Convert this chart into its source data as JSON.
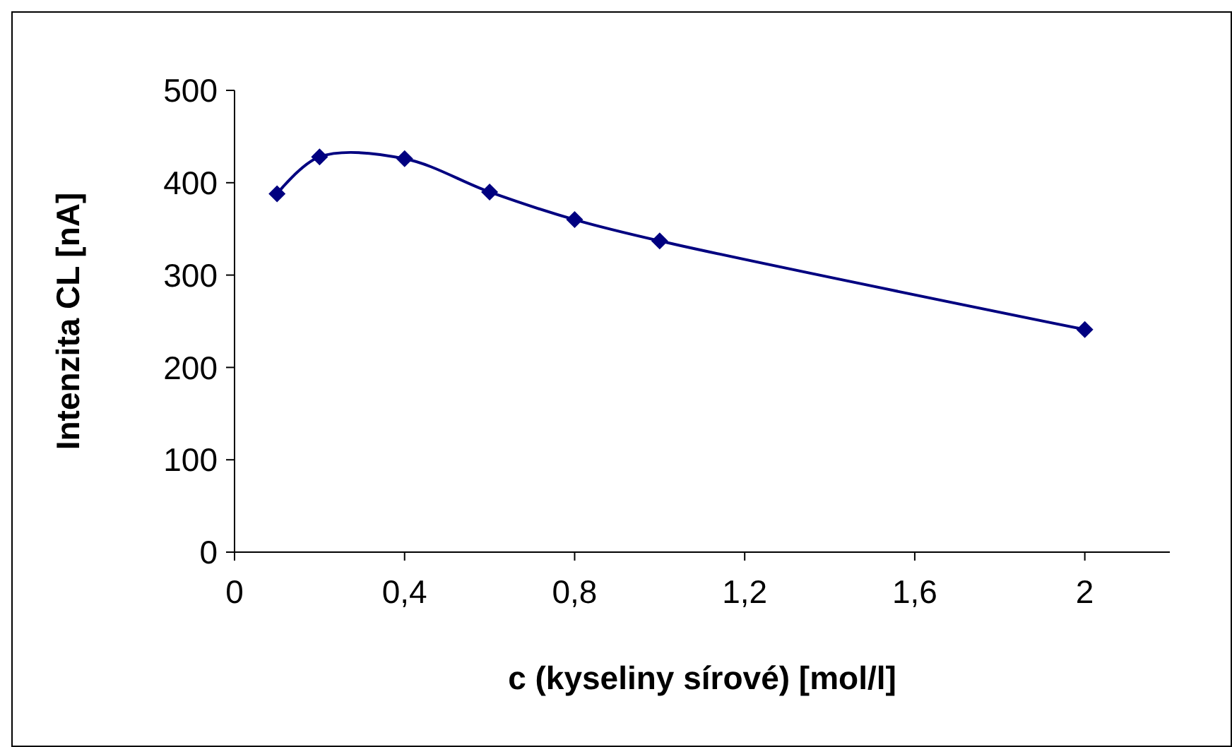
{
  "chart_data": {
    "type": "line",
    "xlabel": "c (kyseliny sírové)  [mol/l]",
    "ylabel": "Intenzita CL  [nA]",
    "x": [
      0.1,
      0.2,
      0.4,
      0.6,
      0.8,
      1.0,
      2.0
    ],
    "series": [
      {
        "color": "#000080",
        "values": [
          388,
          428,
          426,
          390,
          360,
          337,
          241
        ]
      }
    ],
    "xlim": [
      0,
      2.2
    ],
    "xticks": [
      0,
      {
        "value": 0.4,
        "label": "0,4"
      },
      {
        "value": 0.8,
        "label": "0,8"
      },
      {
        "value": 1.2,
        "label": "1,2"
      },
      {
        "value": 1.6,
        "label": "1,6"
      },
      2
    ],
    "ylim": [
      0,
      500
    ],
    "yticks": [
      0,
      100,
      200,
      300,
      400,
      500
    ],
    "grid": false,
    "marker": "diamond",
    "line_style": "solid"
  }
}
